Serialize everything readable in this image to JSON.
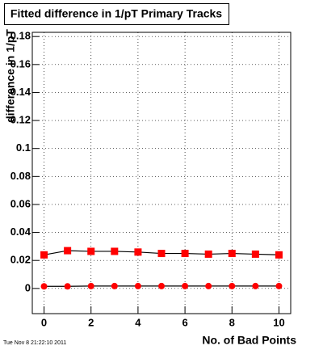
{
  "chart_data": {
    "type": "scatter",
    "title": "Fitted difference in 1/pT Primary Tracks",
    "x_label": "No. of Bad Points",
    "y_label": "difference in 1/pT",
    "footer": "Tue Nov  8 21:22:10 2011",
    "x": [
      0,
      1,
      2,
      3,
      4,
      5,
      6,
      7,
      8,
      9,
      10
    ],
    "series": [
      {
        "color": "#ff0000",
        "marker": "square",
        "values": [
          0.024,
          0.027,
          0.0265,
          0.0265,
          0.026,
          0.025,
          0.025,
          0.0245,
          0.025,
          0.0245,
          0.024
        ]
      },
      {
        "color": "#ff0000",
        "marker": "circle",
        "values": [
          0.0015,
          0.0015,
          0.0017,
          0.0017,
          0.0017,
          0.0017,
          0.0017,
          0.0017,
          0.0017,
          0.0017,
          0.0017
        ]
      }
    ],
    "xlim": [
      -0.5,
      10.5
    ],
    "ylim": [
      -0.018,
      0.183
    ],
    "xticks": [
      0,
      2,
      4,
      6,
      8,
      10
    ],
    "yticks": [
      0,
      0.02,
      0.04,
      0.06,
      0.08,
      0.1,
      0.12,
      0.14,
      0.16,
      0.18
    ],
    "grid": true
  }
}
